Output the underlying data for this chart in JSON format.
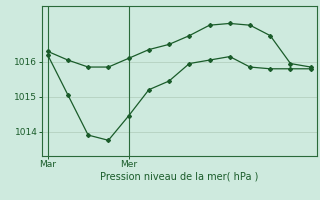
{
  "background_color": "#ceeade",
  "grid_color": "#b8d4c4",
  "line_color": "#1a5c2a",
  "marker_color": "#1a5c2a",
  "xlabel": "Pression niveau de la mer( hPa )",
  "xlabel_color": "#1a5c2a",
  "tick_color": "#1a5c2a",
  "axis_color": "#2a6a3a",
  "ylim": [
    1013.3,
    1017.6
  ],
  "yticks": [
    1014,
    1015,
    1016
  ],
  "vline_x": [
    0,
    4
  ],
  "vline_labels": [
    "Mar",
    "Mer"
  ],
  "line1_x": [
    0,
    1,
    2,
    3,
    4,
    5,
    6,
    7,
    8,
    9,
    10,
    11,
    12,
    13
  ],
  "line1_y": [
    1016.3,
    1016.05,
    1015.85,
    1015.85,
    1016.1,
    1016.35,
    1016.5,
    1016.75,
    1017.05,
    1017.1,
    1017.05,
    1016.75,
    1015.95,
    1015.85
  ],
  "line2_x": [
    0,
    1,
    2,
    3,
    4,
    5,
    6,
    7,
    8,
    9,
    10,
    11,
    12,
    13
  ],
  "line2_y": [
    1016.2,
    1015.05,
    1013.9,
    1013.75,
    1014.45,
    1015.2,
    1015.45,
    1015.95,
    1016.05,
    1016.15,
    1015.85,
    1015.8,
    1015.8,
    1015.8
  ],
  "xlim": [
    -0.3,
    13.3
  ],
  "figsize": [
    3.2,
    2.0
  ],
  "dpi": 100
}
